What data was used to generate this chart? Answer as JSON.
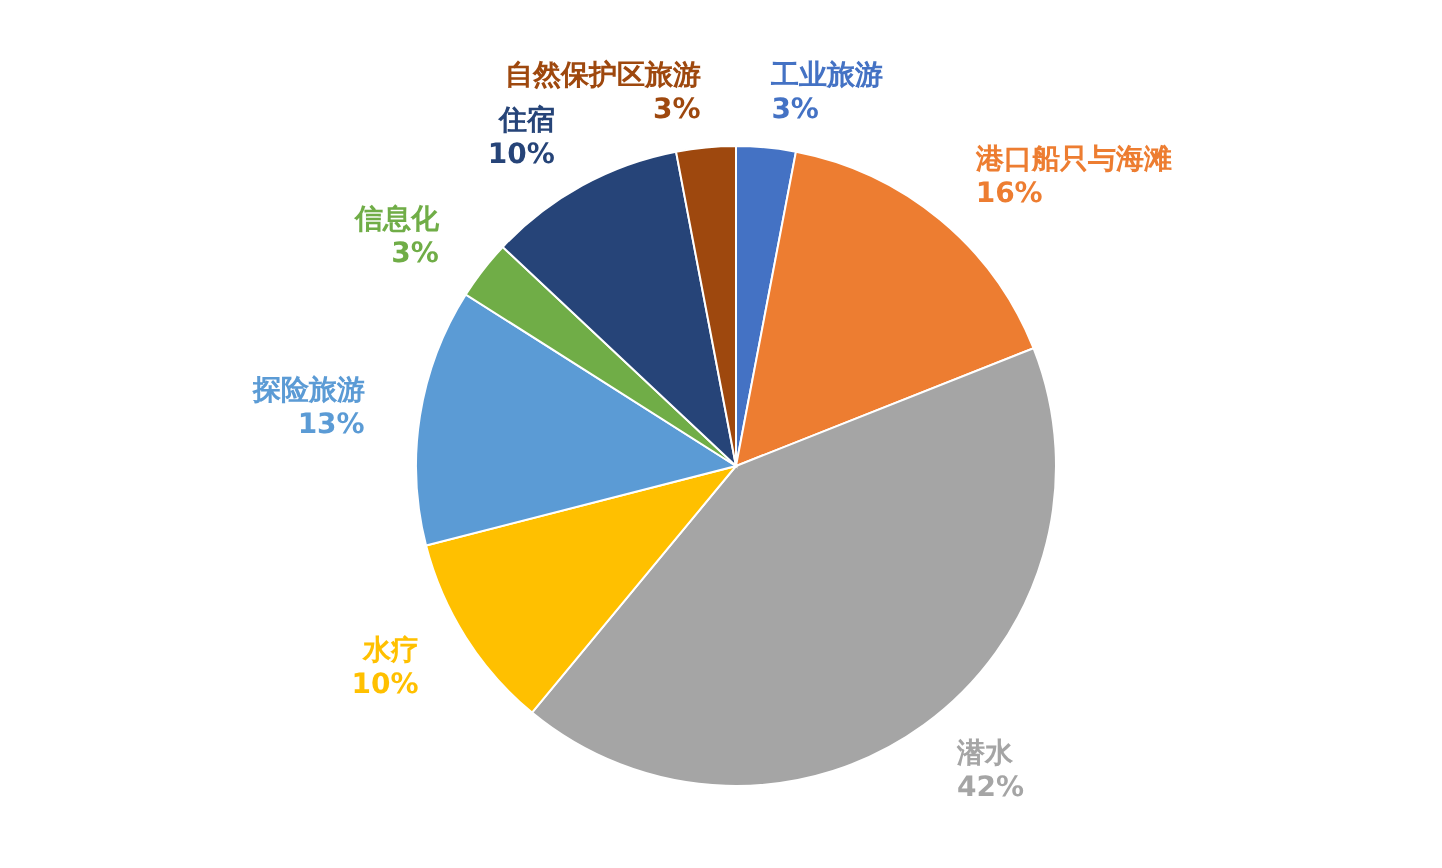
{
  "chart_data": {
    "type": "pie",
    "categories": [
      "工业旅游",
      "港口船只与海滩",
      "潜水",
      "水疗",
      "探险旅游",
      "信息化",
      "住宿",
      "自然保护区旅游"
    ],
    "values": [
      3,
      16,
      42,
      10,
      13,
      3,
      10,
      3
    ],
    "value_labels": [
      "3%",
      "16%",
      "42%",
      "10%",
      "13%",
      "3%",
      "10%",
      "3%"
    ],
    "colors": [
      "#4472c4",
      "#ed7d31",
      "#a5a5a5",
      "#ffc000",
      "#5b9bd5",
      "#70ad47",
      "#264478",
      "#9e480e"
    ]
  }
}
